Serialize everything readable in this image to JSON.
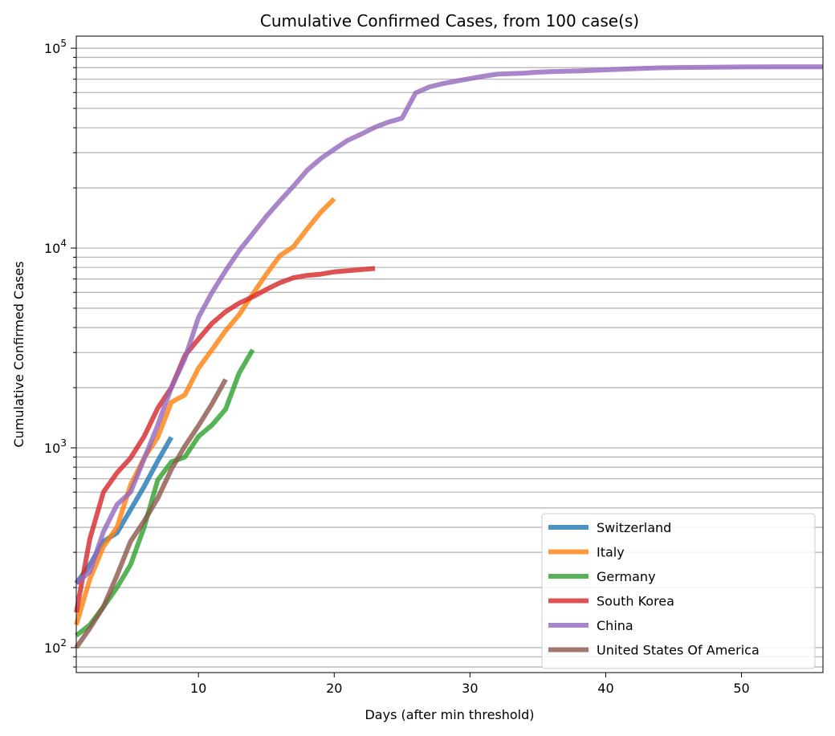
{
  "chart_data": {
    "type": "line",
    "title": "Cumulative Confirmed Cases, from 100 case(s)",
    "xlabel": "Days (after min threshold)",
    "ylabel": "Cumulative Confirmed Cases",
    "xlim": [
      1,
      56
    ],
    "ylim": [
      75,
      115000
    ],
    "yscale": "log",
    "grid": "y-major-and-minor",
    "legend_position": "lower right",
    "x_ticks": [
      10,
      20,
      30,
      40,
      50
    ],
    "y_ticks": [
      {
        "value": 100,
        "base": "10",
        "exp": "2"
      },
      {
        "value": 1000,
        "base": "10",
        "exp": "3"
      },
      {
        "value": 10000,
        "base": "10",
        "exp": "4"
      },
      {
        "value": 100000,
        "base": "10",
        "exp": "5"
      }
    ],
    "series": [
      {
        "name": "Switzerland",
        "color": "#1f77b4",
        "x": [
          1,
          2,
          3,
          4,
          5,
          6,
          7,
          8
        ],
        "y": [
          210,
          260,
          340,
          375,
          490,
          640,
          860,
          1130
        ]
      },
      {
        "name": "Italy",
        "color": "#ff7f0e",
        "x": [
          1,
          2,
          3,
          4,
          5,
          6,
          7,
          8,
          9,
          10,
          11,
          12,
          13,
          14,
          15,
          16,
          17,
          18,
          19,
          20
        ],
        "y": [
          130,
          220,
          320,
          400,
          650,
          890,
          1130,
          1690,
          1840,
          2500,
          3100,
          3860,
          4640,
          5880,
          7400,
          9150,
          10150,
          12460,
          15100,
          17660
        ]
      },
      {
        "name": "Germany",
        "color": "#2ca02c",
        "x": [
          1,
          2,
          3,
          4,
          5,
          6,
          7,
          8,
          9,
          10,
          11,
          12,
          13,
          14
        ],
        "y": [
          115,
          130,
          160,
          200,
          260,
          400,
          690,
          850,
          900,
          1140,
          1300,
          1560,
          2370,
          3100
        ]
      },
      {
        "name": "South Korea",
        "color": "#d62728",
        "x": [
          1,
          2,
          3,
          4,
          5,
          6,
          7,
          8,
          9,
          10,
          11,
          12,
          13,
          14,
          15,
          16,
          17,
          18,
          19,
          20,
          21,
          22,
          23
        ],
        "y": [
          150,
          350,
          600,
          750,
          890,
          1140,
          1580,
          2000,
          2900,
          3500,
          4200,
          4800,
          5300,
          5700,
          6200,
          6700,
          7100,
          7300,
          7400,
          7600,
          7700,
          7800,
          7900
        ]
      },
      {
        "name": "China",
        "color": "#9467bd",
        "x": [
          1,
          2,
          3,
          4,
          5,
          6,
          7,
          8,
          9,
          10,
          11,
          12,
          13,
          14,
          15,
          16,
          17,
          18,
          19,
          20,
          21,
          22,
          23,
          24,
          25,
          26,
          27,
          28,
          29,
          30,
          31,
          32,
          33,
          34,
          35,
          36,
          37,
          38,
          40,
          42,
          44,
          46,
          48,
          50,
          52,
          54,
          56
        ],
        "y": [
          210,
          240,
          380,
          520,
          600,
          880,
          1300,
          2000,
          2800,
          4500,
          6000,
          7700,
          9700,
          11800,
          14400,
          17200,
          20400,
          24500,
          28000,
          31200,
          34600,
          37200,
          40200,
          42700,
          44700,
          59800,
          64000,
          66500,
          68500,
          70500,
          72400,
          74200,
          74600,
          75100,
          75900,
          76400,
          76700,
          77000,
          78000,
          79000,
          79800,
          80200,
          80400,
          80600,
          80700,
          80800,
          80800
        ]
      },
      {
        "name": "United States Of America",
        "color": "#8c564b",
        "x": [
          1,
          2,
          3,
          4,
          5,
          6,
          7,
          8,
          9,
          10,
          11,
          12
        ],
        "y": [
          100,
          125,
          160,
          230,
          340,
          430,
          560,
          780,
          1020,
          1290,
          1660,
          2200
        ]
      }
    ]
  }
}
